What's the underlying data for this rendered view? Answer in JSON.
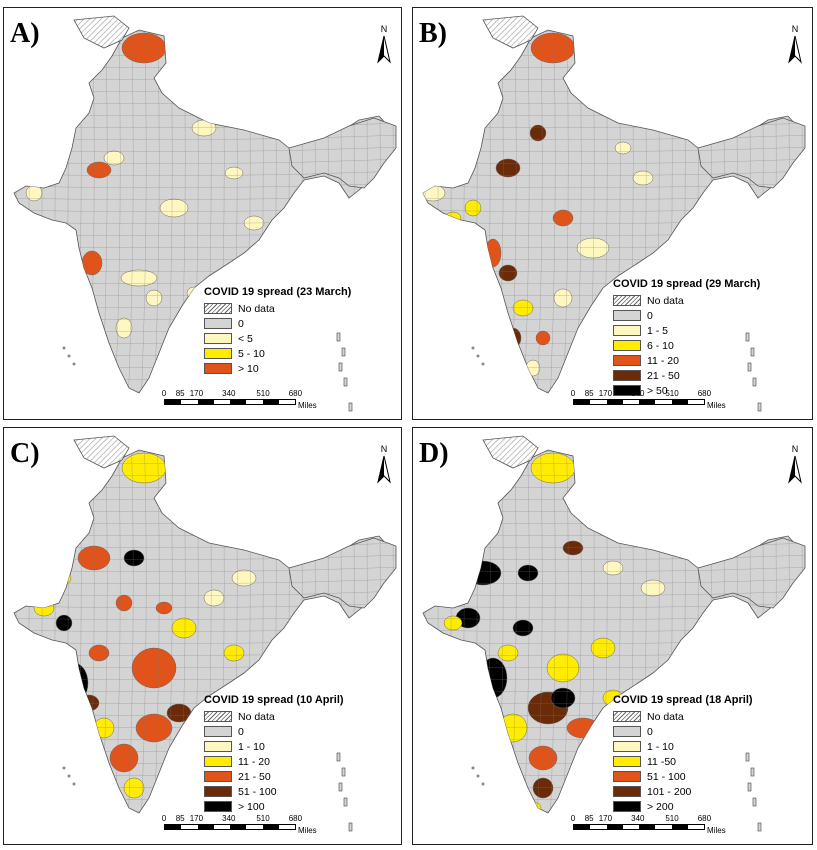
{
  "compass_letter": "N",
  "scale": {
    "ticks": [
      "0",
      "85",
      "170",
      "340",
      "510",
      "680"
    ],
    "unit": "Miles"
  },
  "no_data_label": "No data",
  "colors": {
    "land_gray": "#d4d4d4",
    "border": "#7a7a7a",
    "light_yellow": "#fff7c0",
    "yellow": "#ffec00",
    "orange": "#e0531a",
    "brown": "#6b2a08",
    "black": "#000000",
    "hatch": "#9a9a9a"
  },
  "panels": [
    {
      "label": "A)",
      "legend_title": "COVID 19 spread (23 March)",
      "classes": [
        {
          "label": "0",
          "color": "#d4d4d4"
        },
        {
          "label": "< 5",
          "color": "#fff7c0"
        },
        {
          "label": "5 - 10",
          "color": "#ffec00"
        },
        {
          "label": "> 10",
          "color": "#e0531a"
        }
      ]
    },
    {
      "label": "B)",
      "legend_title": "COVID 19 spread (29 March)",
      "classes": [
        {
          "label": "0",
          "color": "#d4d4d4"
        },
        {
          "label": "1 - 5",
          "color": "#fff7c0"
        },
        {
          "label": "6 - 10",
          "color": "#ffec00"
        },
        {
          "label": "11 - 20",
          "color": "#e0531a"
        },
        {
          "label": "21 - 50",
          "color": "#6b2a08"
        },
        {
          "label": "> 50",
          "color": "#000000"
        }
      ]
    },
    {
      "label": "C)",
      "legend_title": "COVID 19 spread (10 April)",
      "classes": [
        {
          "label": "0",
          "color": "#d4d4d4"
        },
        {
          "label": "1 - 10",
          "color": "#fff7c0"
        },
        {
          "label": "11 - 20",
          "color": "#ffec00"
        },
        {
          "label": "21 - 50",
          "color": "#e0531a"
        },
        {
          "label": "51 - 100",
          "color": "#6b2a08"
        },
        {
          "label": "> 100",
          "color": "#000000"
        }
      ]
    },
    {
      "label": "D)",
      "legend_title": "COVID 19 spread (18 April)",
      "classes": [
        {
          "label": "0",
          "color": "#d4d4d4"
        },
        {
          "label": "1 - 10",
          "color": "#fff7c0"
        },
        {
          "label": "11 -50",
          "color": "#ffec00"
        },
        {
          "label": "51 - 100",
          "color": "#e0531a"
        },
        {
          "label": "101 - 200",
          "color": "#6b2a08"
        },
        {
          "label": "> 200",
          "color": "#000000"
        }
      ]
    }
  ]
}
